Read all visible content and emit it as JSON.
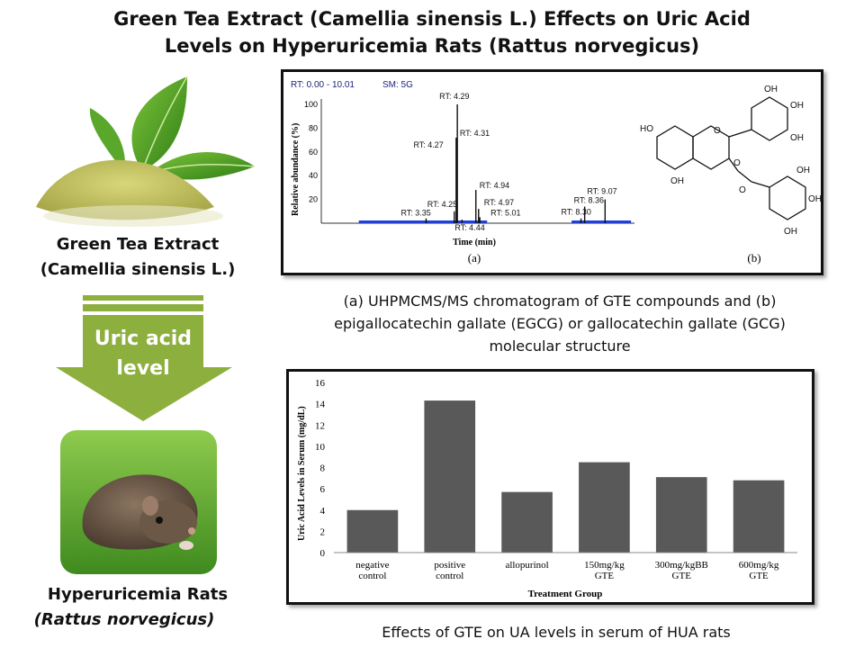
{
  "title": {
    "line1": "Green Tea Extract (Camellia sinensis L.) Effects on Uric Acid",
    "line2": "Levels on Hyperuricemia Rats (Rattus norvegicus)"
  },
  "left": {
    "extract_label_1": "Green Tea Extract",
    "extract_label_2": "(Camellia sinensis L.)",
    "arrow_label_1": "Uric acid",
    "arrow_label_2": "level",
    "rat_label_1": "Hyperuricemia Rats",
    "rat_label_2": "(Rattus norvegicus)",
    "arrow_color": "#8DAF3E"
  },
  "chromatogram": {
    "header_rt": "RT: 0.00 - 10.01",
    "header_sm": "SM: 5G",
    "ylabel": "Relative abundance (%)",
    "xlabel": "Time (min)",
    "panel_a": "(a)",
    "panel_b": "(b)",
    "yticks": [
      "0",
      "20",
      "40",
      "60",
      "80",
      "100"
    ],
    "peaks": [
      {
        "label": "RT: 3.35",
        "rt": 3.35,
        "abundance": 4
      },
      {
        "label": "RT: 4.25",
        "rt": 4.25,
        "abundance": 10
      },
      {
        "label": "RT: 4.27",
        "rt": 4.27,
        "abundance": 62
      },
      {
        "label": "RT: 4.29",
        "rt": 4.29,
        "abundance": 100
      },
      {
        "label": "RT: 4.31",
        "rt": 4.31,
        "abundance": 72
      },
      {
        "label": "RT: 4.44",
        "rt": 4.44,
        "abundance": 3
      },
      {
        "label": "RT: 4.94",
        "rt": 4.94,
        "abundance": 28
      },
      {
        "label": "RT: 4.97",
        "rt": 4.97,
        "abundance": 12
      },
      {
        "label": "RT: 5.01",
        "rt": 5.01,
        "abundance": 5
      },
      {
        "label": "RT: 8.30",
        "rt": 8.3,
        "abundance": 4
      },
      {
        "label": "RT: 8.36",
        "rt": 8.36,
        "abundance": 14
      },
      {
        "label": "RT: 9.07",
        "rt": 9.07,
        "abundance": 20
      }
    ],
    "structure_labels": [
      "OH",
      "OH",
      "OH",
      "HO",
      "OH",
      "O",
      "O",
      "O",
      "OH",
      "OH",
      "OH"
    ]
  },
  "caption_chrom": {
    "line1": "(a) UHPMCMS/MS chromatogram of GTE compounds and (b)",
    "line2": "epigallocatechin gallate (EGCG) or gallocatechin gallate (GCG)",
    "line3": "molecular structure"
  },
  "chart_data": {
    "type": "bar",
    "categories": [
      [
        "negative",
        "control"
      ],
      [
        "positive",
        "control"
      ],
      [
        "allopurinol"
      ],
      [
        "150mg/kg",
        "GTE"
      ],
      [
        "300mg/kgBB",
        "GTE"
      ],
      [
        "600mg/kg",
        "GTE"
      ]
    ],
    "values": [
      4.0,
      14.3,
      5.7,
      8.5,
      7.1,
      6.8
    ],
    "title": "",
    "xlabel": "Treatment Group",
    "ylabel": "Uric Acid Levels in Serum (mg/dL)",
    "ylim": [
      0,
      16
    ],
    "yticks": [
      0,
      2,
      4,
      6,
      8,
      10,
      12,
      14,
      16
    ],
    "bar_color": "#595959",
    "grid": false
  },
  "caption_chart": "Effects of GTE on UA levels in serum of HUA rats"
}
